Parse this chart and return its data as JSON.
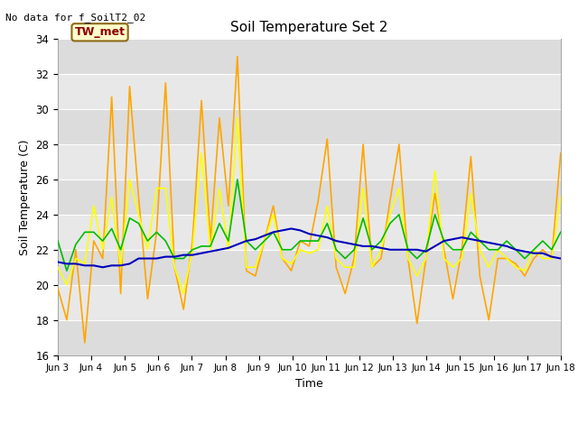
{
  "title": "Soil Temperature Set 2",
  "xlabel": "Time",
  "ylabel": "Soil Temperature (C)",
  "no_data_text": "No data for f_SoilT2_02",
  "tw_met_label": "TW_met",
  "ylim": [
    16,
    34
  ],
  "yticks": [
    16,
    18,
    20,
    22,
    24,
    26,
    28,
    30,
    32,
    34
  ],
  "x_tick_labels": [
    "Jun 3",
    "Jun 4",
    "Jun 5",
    "Jun 6",
    "Jun 7",
    "Jun 8",
    "Jun 9",
    "Jun 10",
    "Jun 11",
    "Jun 12",
    "Jun 13",
    "Jun 14",
    "Jun 15",
    "Jun 16",
    "Jun 17",
    "Jun 18"
  ],
  "colors": {
    "SoilT2_04": "#FFA500",
    "SoilT2_08": "#FFFF00",
    "SoilT2_16": "#00BB00",
    "SoilT2_32": "#0000BB"
  },
  "fig_bg": "#FFFFFF",
  "plot_bg": "#E8E8E8",
  "band_light": "#EBEBEB",
  "band_dark": "#DCDCDC",
  "SoilT2_04": [
    19.8,
    18.0,
    22.0,
    16.7,
    22.5,
    21.5,
    30.7,
    19.5,
    31.3,
    25.0,
    19.2,
    23.0,
    31.5,
    21.0,
    18.6,
    22.5,
    30.5,
    22.5,
    29.5,
    24.5,
    33.0,
    20.8,
    20.5,
    22.5,
    24.5,
    21.5,
    20.8,
    22.5,
    22.2,
    24.8,
    28.3,
    21.0,
    19.5,
    21.5,
    28.0,
    21.0,
    21.5,
    24.8,
    28.0,
    21.5,
    17.8,
    21.5,
    25.2,
    22.0,
    19.2,
    22.0,
    27.3,
    20.5,
    18.0,
    21.5,
    21.5,
    21.2,
    20.5,
    21.5,
    22.0,
    21.5,
    27.5
  ],
  "SoilT2_08": [
    21.0,
    20.0,
    21.5,
    21.2,
    24.5,
    22.0,
    25.0,
    21.0,
    26.0,
    24.0,
    22.0,
    25.5,
    25.5,
    21.0,
    19.5,
    22.0,
    27.5,
    22.0,
    25.5,
    22.0,
    29.5,
    21.0,
    21.0,
    22.5,
    24.0,
    21.5,
    21.2,
    22.0,
    21.8,
    22.0,
    24.5,
    21.5,
    21.0,
    21.0,
    25.5,
    21.0,
    22.0,
    24.0,
    25.5,
    21.5,
    20.5,
    21.5,
    26.5,
    21.5,
    21.0,
    21.5,
    25.2,
    22.0,
    21.0,
    22.0,
    21.5,
    21.0,
    20.8,
    22.0,
    21.5,
    21.5,
    25.0
  ],
  "SoilT2_16": [
    22.5,
    20.8,
    22.3,
    23.0,
    23.0,
    22.5,
    23.2,
    22.0,
    23.8,
    23.5,
    22.5,
    23.0,
    22.5,
    21.5,
    21.5,
    22.0,
    22.2,
    22.2,
    23.5,
    22.5,
    26.0,
    22.5,
    22.0,
    22.5,
    23.0,
    22.0,
    22.0,
    22.5,
    22.5,
    22.5,
    23.5,
    22.0,
    21.5,
    22.0,
    23.8,
    22.0,
    22.5,
    23.5,
    24.0,
    22.0,
    21.5,
    22.0,
    24.0,
    22.5,
    22.0,
    22.0,
    23.0,
    22.5,
    22.0,
    22.0,
    22.5,
    22.0,
    21.5,
    22.0,
    22.5,
    22.0,
    23.0
  ],
  "SoilT2_32": [
    21.3,
    21.2,
    21.2,
    21.1,
    21.1,
    21.0,
    21.1,
    21.1,
    21.2,
    21.5,
    21.5,
    21.5,
    21.6,
    21.6,
    21.7,
    21.7,
    21.8,
    21.9,
    22.0,
    22.1,
    22.3,
    22.5,
    22.6,
    22.8,
    23.0,
    23.1,
    23.2,
    23.1,
    22.9,
    22.8,
    22.7,
    22.5,
    22.4,
    22.3,
    22.2,
    22.2,
    22.1,
    22.0,
    22.0,
    22.0,
    22.0,
    21.9,
    22.2,
    22.5,
    22.6,
    22.7,
    22.6,
    22.5,
    22.4,
    22.3,
    22.2,
    22.0,
    21.9,
    21.8,
    21.8,
    21.6,
    21.5
  ]
}
